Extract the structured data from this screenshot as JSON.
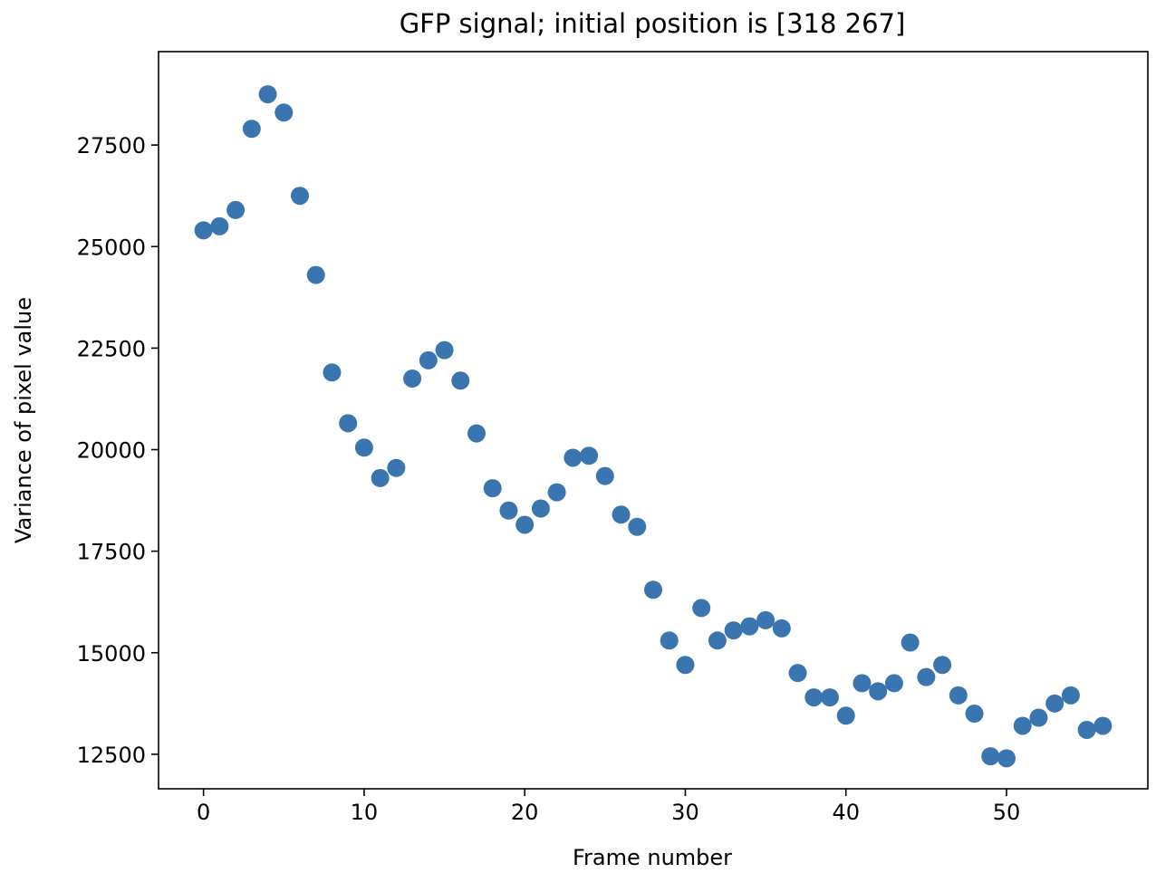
{
  "chart_data": {
    "type": "scatter",
    "title": "GFP signal; initial position is [318 267]",
    "xlabel": "Frame number",
    "ylabel": "Variance of pixel value",
    "xlim": [
      -2.8,
      58.8
    ],
    "ylim": [
      11650,
      29800
    ],
    "xticks": [
      0,
      10,
      20,
      30,
      40,
      50
    ],
    "yticks": [
      12500,
      15000,
      17500,
      20000,
      22500,
      25000,
      27500
    ],
    "marker_color": "#3a75af",
    "grid": false,
    "x": [
      0,
      1,
      2,
      3,
      4,
      5,
      6,
      7,
      8,
      9,
      10,
      11,
      12,
      13,
      14,
      15,
      16,
      17,
      18,
      19,
      20,
      21,
      22,
      23,
      24,
      25,
      26,
      27,
      28,
      29,
      30,
      31,
      32,
      33,
      34,
      35,
      36,
      37,
      38,
      39,
      40,
      41,
      42,
      43,
      44,
      45,
      46,
      47,
      48,
      49,
      50,
      51,
      52,
      53,
      54,
      55,
      56
    ],
    "y": [
      25400,
      25500,
      25900,
      27900,
      28750,
      28300,
      26250,
      24300,
      21900,
      20650,
      20050,
      19300,
      19550,
      21750,
      22200,
      22450,
      21700,
      20400,
      19050,
      18500,
      18150,
      18550,
      18950,
      19800,
      19850,
      19350,
      18400,
      18100,
      16550,
      15300,
      14700,
      16100,
      15300,
      15550,
      15650,
      15800,
      15600,
      14500,
      13900,
      13900,
      13450,
      14250,
      14050,
      14250,
      15250,
      14400,
      14700,
      13950,
      13500,
      12450,
      12400,
      13200,
      13400,
      13750,
      13950,
      13100,
      13200
    ]
  }
}
